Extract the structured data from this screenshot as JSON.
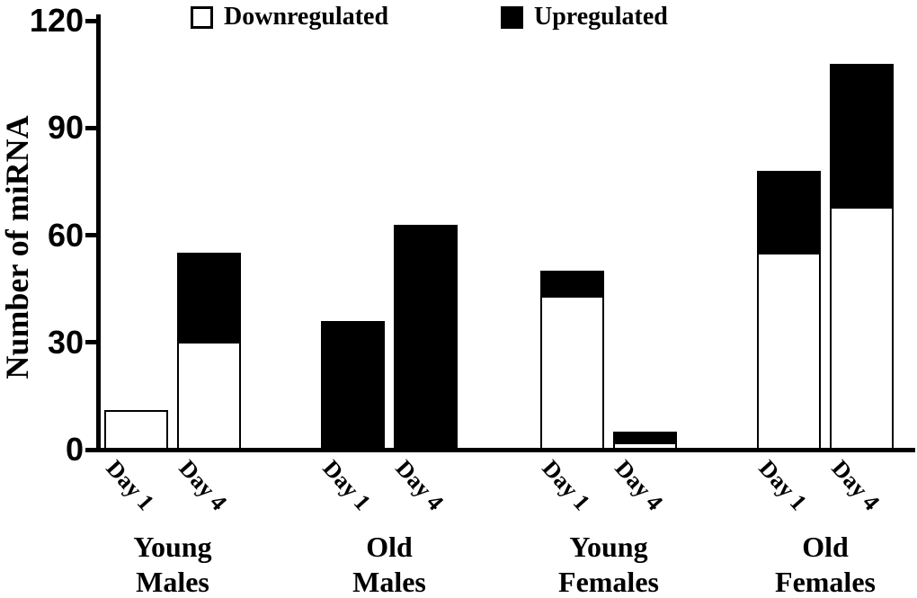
{
  "figure": {
    "background_color": "#ffffff",
    "ink_color": "#000000"
  },
  "chart_data": {
    "type": "bar",
    "stacked": true,
    "title": "",
    "xlabel": "",
    "ylabel": "Number of miRNA",
    "ylim": [
      0,
      120
    ],
    "yticks": [
      "0",
      "30",
      "60",
      "90",
      "120"
    ],
    "grid": false,
    "legend": {
      "position": "top",
      "entries": [
        {
          "label": "Downregulated",
          "color": "#ffffff"
        },
        {
          "label": "Upregulated",
          "color": "#000000"
        }
      ]
    },
    "categories": [
      "Young Males",
      "Old Males",
      "Young Females",
      "Old Females"
    ],
    "x_sublabels": [
      "Day 1",
      "Day 4"
    ],
    "groups": [
      {
        "label_lines": [
          "Young",
          "Males"
        ],
        "bars": [
          {
            "day": "Day 1",
            "downregulated": 11,
            "upregulated": 0,
            "total": 11
          },
          {
            "day": "Day 4",
            "downregulated": 30,
            "upregulated": 25,
            "total": 55
          }
        ]
      },
      {
        "label_lines": [
          "Old",
          "Males"
        ],
        "bars": [
          {
            "day": "Day 1",
            "downregulated": 0,
            "upregulated": 36,
            "total": 36
          },
          {
            "day": "Day 4",
            "downregulated": 0,
            "upregulated": 63,
            "total": 63
          }
        ]
      },
      {
        "label_lines": [
          "Young",
          "Females"
        ],
        "bars": [
          {
            "day": "Day 1",
            "downregulated": 43,
            "upregulated": 7,
            "total": 50
          },
          {
            "day": "Day 4",
            "downregulated": 2,
            "upregulated": 3,
            "total": 5
          }
        ]
      },
      {
        "label_lines": [
          "Old",
          "Females"
        ],
        "bars": [
          {
            "day": "Day 1",
            "downregulated": 55,
            "upregulated": 23,
            "total": 78
          },
          {
            "day": "Day 4",
            "downregulated": 68,
            "upregulated": 40,
            "total": 108
          }
        ]
      }
    ]
  }
}
